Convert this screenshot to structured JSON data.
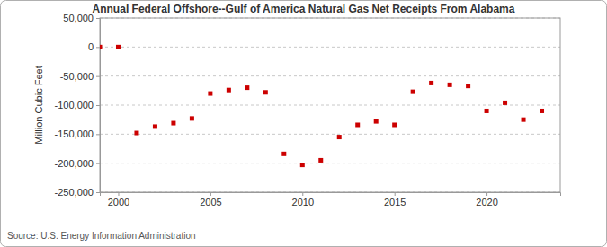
{
  "chart_data": {
    "type": "scatter",
    "title": "Annual Federal Offshore--Gulf of America Natural Gas Net Receipts From Alabama",
    "y_label": "Million Cubic Feet",
    "source": "Source: U.S. Energy Information Administration",
    "x": [
      1999,
      2000,
      2001,
      2002,
      2003,
      2004,
      2005,
      2006,
      2007,
      2008,
      2009,
      2010,
      2011,
      2012,
      2013,
      2014,
      2015,
      2016,
      2017,
      2018,
      2019,
      2020,
      2021,
      2022,
      2023
    ],
    "values": [
      0,
      0,
      -148000,
      -137000,
      -131000,
      -123000,
      -80000,
      -74000,
      -70000,
      -78000,
      -184000,
      -203000,
      -195000,
      -155000,
      -134000,
      -128000,
      -134000,
      -77000,
      -62000,
      -65000,
      -67000,
      -110000,
      -96000,
      -125000,
      -110000
    ],
    "color": "#cc0000",
    "marker": "square",
    "xlim": [
      1999,
      2024
    ],
    "xticks": [
      2000,
      2005,
      2010,
      2015,
      2020
    ],
    "ylim": [
      -250000,
      50000
    ],
    "yticks": [
      {
        "value": -250000,
        "label": "-250,000"
      },
      {
        "value": -200000,
        "label": "-200,000"
      },
      {
        "value": -150000,
        "label": "-150,000"
      },
      {
        "value": -100000,
        "label": "-100,000"
      },
      {
        "value": -50000,
        "label": "-50,000"
      },
      0,
      {
        "value": 50000,
        "label": "50,000"
      }
    ],
    "grid": true
  }
}
